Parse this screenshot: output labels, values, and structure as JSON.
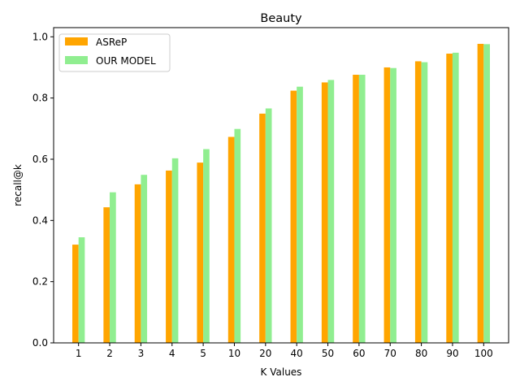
{
  "chart_data": {
    "type": "bar",
    "title": "Beauty",
    "xlabel": "K Values",
    "ylabel": "recall@k",
    "ylim": [
      0,
      1.03
    ],
    "yticks": [
      0.0,
      0.2,
      0.4,
      0.6,
      0.8,
      1.0
    ],
    "ytick_labels": [
      "0.0",
      "0.2",
      "0.4",
      "0.6",
      "0.8",
      "1.0"
    ],
    "categories": [
      "1",
      "2",
      "3",
      "4",
      "5",
      "10",
      "20",
      "40",
      "50",
      "60",
      "70",
      "80",
      "90",
      "100"
    ],
    "series": [
      {
        "name": "ASReP",
        "color": "#ffa500",
        "values": [
          0.321,
          0.443,
          0.518,
          0.563,
          0.589,
          0.673,
          0.749,
          0.824,
          0.851,
          0.876,
          0.9,
          0.92,
          0.945,
          0.977
        ]
      },
      {
        "name": "OUR MODEL",
        "color": "#90ee90",
        "values": [
          0.345,
          0.492,
          0.549,
          0.603,
          0.633,
          0.699,
          0.766,
          0.837,
          0.859,
          0.876,
          0.898,
          0.917,
          0.948,
          0.976
        ]
      }
    ],
    "legend": "upper-left",
    "grid": false
  }
}
